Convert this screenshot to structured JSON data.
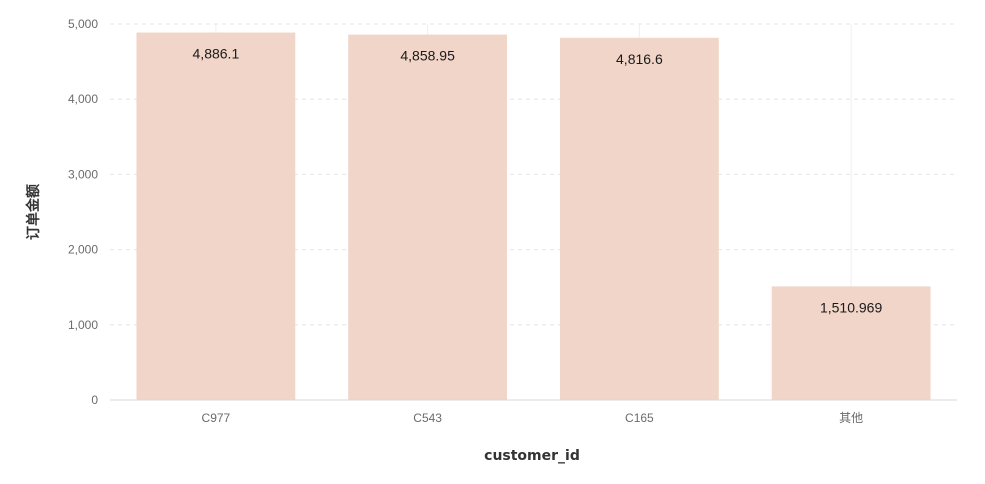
{
  "chart_data": {
    "type": "bar",
    "categories": [
      "C977",
      "C543",
      "C165",
      "其他"
    ],
    "values": [
      4886.1,
      4858.95,
      4816.6,
      1510.969
    ],
    "data_labels": [
      "4,886.1",
      "4,858.95",
      "4,816.6",
      "1,510.969"
    ],
    "xlabel": "customer_id",
    "ylabel": "订单金额",
    "ylim": [
      0,
      5000
    ],
    "yticks": [
      0,
      1000,
      2000,
      3000,
      4000,
      5000
    ],
    "ytick_labels": [
      "0",
      "1,000",
      "2,000",
      "3,000",
      "4,000",
      "5,000"
    ],
    "grid": true,
    "legend": "none",
    "colors": {
      "bar": "#f0d5c8",
      "grid": "#e6e6e6",
      "axis": "#d9d9d9"
    }
  }
}
